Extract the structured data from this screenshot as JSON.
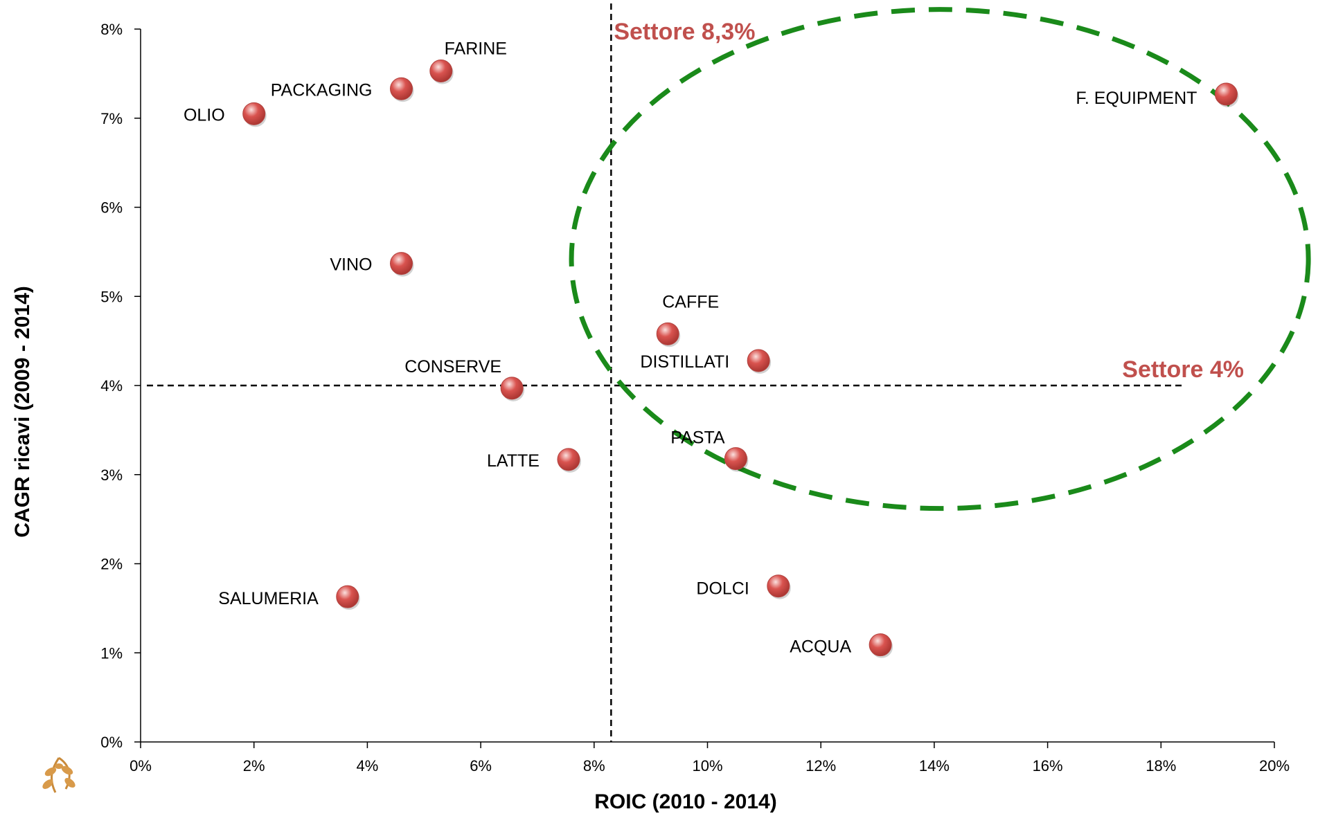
{
  "colors": {
    "marker": "#d9534f",
    "reference_label": "#c0504d",
    "ellipse": "#1a8a1a",
    "axis": "#000000"
  },
  "chart_data": {
    "type": "scatter",
    "xlabel": "ROIC (2010 - 2014)",
    "ylabel": "CAGR ricavi (2009 - 2014)",
    "xlim": [
      0,
      20
    ],
    "ylim": [
      0,
      8
    ],
    "x_ticks": [
      "0%",
      "2%",
      "4%",
      "6%",
      "8%",
      "10%",
      "12%",
      "14%",
      "16%",
      "18%",
      "20%"
    ],
    "y_ticks": [
      "0%",
      "1%",
      "2%",
      "3%",
      "4%",
      "5%",
      "6%",
      "7%",
      "8%"
    ],
    "grid": false,
    "points": [
      {
        "label": "FARINE",
        "x": 5.3,
        "y": 7.53
      },
      {
        "label": "PACKAGING",
        "x": 4.6,
        "y": 7.33
      },
      {
        "label": "OLIO",
        "x": 2.0,
        "y": 7.05
      },
      {
        "label": "VINO",
        "x": 4.6,
        "y": 5.37
      },
      {
        "label": "CAFFE",
        "x": 9.3,
        "y": 4.58
      },
      {
        "label": "DISTILLATI",
        "x": 10.9,
        "y": 4.28
      },
      {
        "label": "CONSERVE",
        "x": 6.55,
        "y": 3.97
      },
      {
        "label": "LATTE",
        "x": 7.55,
        "y": 3.17
      },
      {
        "label": "PASTA",
        "x": 10.5,
        "y": 3.18
      },
      {
        "label": "SALUMERIA",
        "x": 3.65,
        "y": 1.63
      },
      {
        "label": "DOLCI",
        "x": 11.25,
        "y": 1.75
      },
      {
        "label": "ACQUA",
        "x": 13.05,
        "y": 1.09
      },
      {
        "label": "F. EQUIPMENT",
        "x": 19.15,
        "y": 7.27
      }
    ],
    "reference_lines": [
      {
        "axis": "x",
        "value": 8.3,
        "label": "Settore 8,3%"
      },
      {
        "axis": "y",
        "value": 4.0,
        "label": "Settore 4%"
      }
    ],
    "highlight_ellipse": {
      "cx": 14.1,
      "cy": 5.42,
      "rx": 6.5,
      "ry": 2.8
    }
  }
}
